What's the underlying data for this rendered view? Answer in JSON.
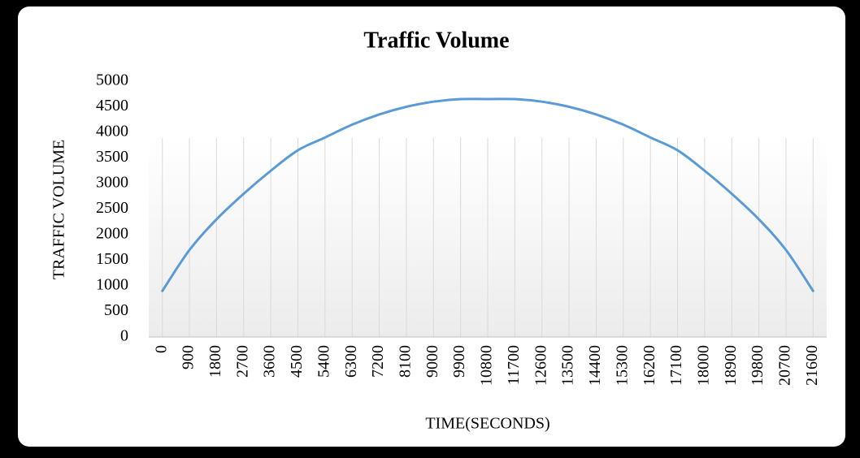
{
  "chart_data": {
    "type": "line",
    "title": "Traffic  Volume",
    "x_label": "TIME(SECONDS)",
    "y_label": "TRAFFIC VOLUME",
    "categories": [
      "0",
      "900",
      "1800",
      "2700",
      "3600",
      "4500",
      "5400",
      "6300",
      "7200",
      "8100",
      "9000",
      "9900",
      "10800",
      "11700",
      "12600",
      "13500",
      "14400",
      "15300",
      "16200",
      "17100",
      "18000",
      "18900",
      "19800",
      "20700",
      "21600"
    ],
    "series": [
      {
        "name": "Traffic Volume",
        "color": "#5b9bd5",
        "values": [
          900,
          1700,
          2300,
          2800,
          3250,
          3650,
          3900,
          4150,
          4350,
          4500,
          4600,
          4650,
          4650,
          4650,
          4600,
          4500,
          4350,
          4150,
          3900,
          3650,
          3250,
          2800,
          2300,
          1700,
          900
        ]
      }
    ],
    "ylim": [
      0,
      5000
    ],
    "yticks": [
      0,
      500,
      1000,
      1500,
      2000,
      2500,
      3000,
      3500,
      4000,
      4500,
      5000
    ],
    "grid": "vertical"
  }
}
